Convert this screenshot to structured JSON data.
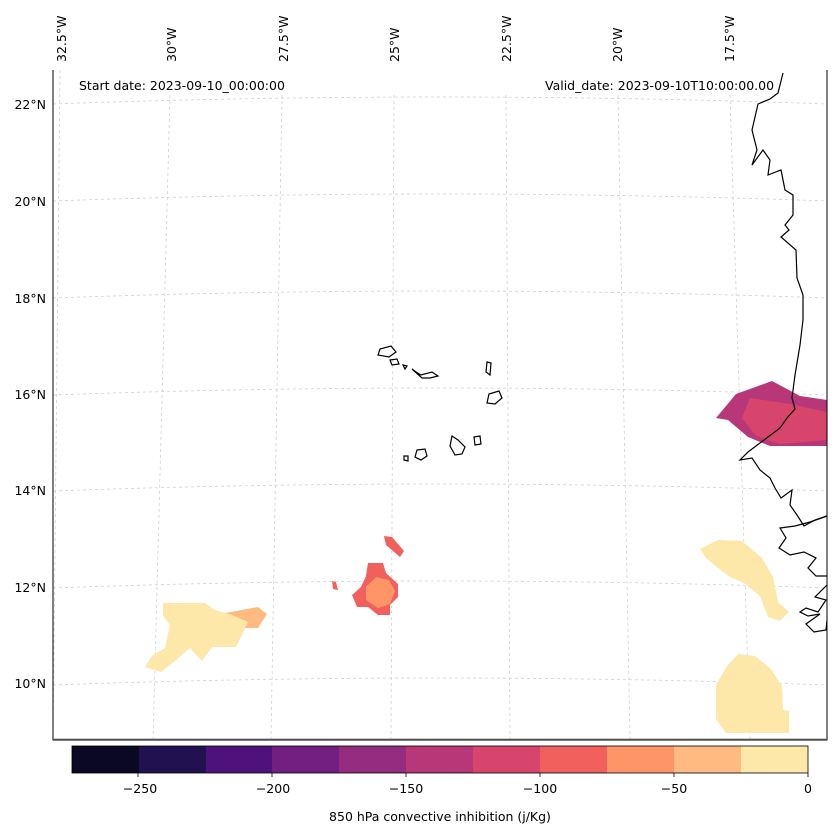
{
  "header": {
    "start_date": "Start date: 2023-09-10_00:00:00",
    "valid_date": "Valid_date: 2023-09-10T10:00:00.00"
  },
  "axes": {
    "longitude_labels": [
      "32.5°W",
      "30°W",
      "27.5°W",
      "25°W",
      "22.5°W",
      "20°W",
      "17.5°W"
    ],
    "latitude_labels": [
      "22°N",
      "20°N",
      "18°N",
      "16°N",
      "14°N",
      "12°N",
      "10°N"
    ]
  },
  "colorbar": {
    "label": "850 hPa convective inhibition (j/Kg)",
    "range": [
      -275,
      0
    ],
    "ticks": [
      "−250",
      "−200",
      "−150",
      "−100",
      "−50",
      "0"
    ],
    "colors": [
      "#0a0822",
      "#221150",
      "#4f117b",
      "#721f81",
      "#952c80",
      "#b73779",
      "#d8456c",
      "#f1605d",
      "#fd9567",
      "#feba80",
      "#fde7a9"
    ]
  },
  "regions": {
    "cape_verde_cin": "-125 to -75",
    "senegal_coast_cin": "-150 to -125",
    "southwest_patch_cin": "-25 to 0"
  }
}
